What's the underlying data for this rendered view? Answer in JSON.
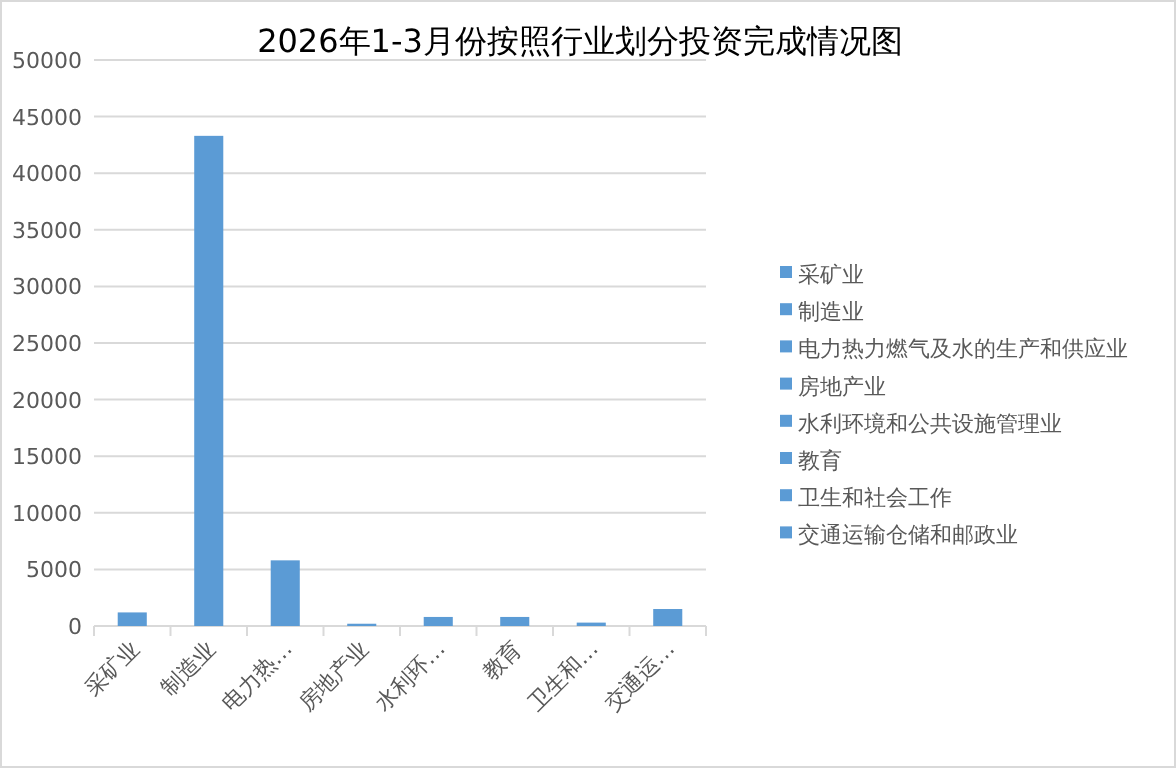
{
  "chart_data": {
    "type": "bar",
    "title": "2026年1-3月份按照行业划分投资完成情况图",
    "categories": [
      "采矿业",
      "制造业",
      "电力热…",
      "房地产业",
      "水利环…",
      "教育",
      "卫生和…",
      "交通运…"
    ],
    "stacked": true,
    "series": [
      {
        "name": "采矿业",
        "color": "#5b9bd5",
        "values": [
          1200,
          null,
          null,
          null,
          null,
          null,
          null,
          null
        ]
      },
      {
        "name": "制造业",
        "color": "#5b9bd5",
        "values": [
          null,
          43300,
          null,
          null,
          null,
          null,
          null,
          null
        ]
      },
      {
        "name": "电力热力燃气及水的生产和供应业",
        "color": "#5b9bd5",
        "values": [
          null,
          null,
          5800,
          null,
          null,
          null,
          null,
          null
        ]
      },
      {
        "name": "房地产业",
        "color": "#5b9bd5",
        "values": [
          null,
          null,
          null,
          200,
          null,
          null,
          null,
          null
        ]
      },
      {
        "name": "水利环境和公共设施管理业",
        "color": "#5b9bd5",
        "values": [
          null,
          null,
          null,
          null,
          800,
          null,
          null,
          null
        ]
      },
      {
        "name": "教育",
        "color": "#5b9bd5",
        "values": [
          null,
          null,
          null,
          null,
          null,
          800,
          null,
          null
        ]
      },
      {
        "name": "卫生和社会工作",
        "color": "#5b9bd5",
        "values": [
          null,
          null,
          null,
          null,
          null,
          null,
          300,
          null
        ]
      },
      {
        "name": "交通运输仓储和邮政业",
        "color": "#5b9bd5",
        "values": [
          null,
          null,
          null,
          null,
          null,
          null,
          null,
          1500
        ]
      }
    ],
    "ylim": [
      0,
      50000
    ],
    "yticks": [
      0,
      5000,
      10000,
      15000,
      20000,
      25000,
      30000,
      35000,
      40000,
      45000,
      50000
    ],
    "grid": "y",
    "legend": "right"
  }
}
